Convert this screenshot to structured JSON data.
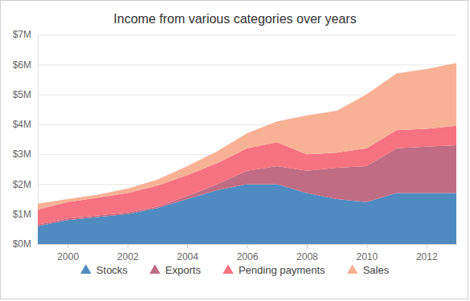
{
  "chart_data": {
    "type": "area",
    "title": "Income from various categories over years",
    "stacked": true,
    "grid": true,
    "legend": "bottom",
    "marker": "triangle",
    "x": [
      1999,
      2000,
      2001,
      2002,
      2003,
      2004,
      2005,
      2006,
      2007,
      2008,
      2009,
      2010,
      2011,
      2012,
      2013
    ],
    "xlim": [
      1999,
      2013
    ],
    "xticks": [
      2000,
      2002,
      2004,
      2006,
      2008,
      2010,
      2012
    ],
    "ylim": [
      0,
      7
    ],
    "yticks": [
      {
        "value": 0,
        "label": "$0M"
      },
      {
        "value": 1,
        "label": "$1M"
      },
      {
        "value": 2,
        "label": "$2M"
      },
      {
        "value": 3,
        "label": "$3M"
      },
      {
        "value": 4,
        "label": "$4M"
      },
      {
        "value": 5,
        "label": "$5M"
      },
      {
        "value": 6,
        "label": "$6M"
      },
      {
        "value": 7,
        "label": "$7M"
      }
    ],
    "series": [
      {
        "name": "Stocks",
        "color": "#4f8bc0",
        "values": [
          0.6,
          0.8,
          0.9,
          1.0,
          1.2,
          1.5,
          1.8,
          2.0,
          2.0,
          1.7,
          1.5,
          1.4,
          1.7,
          1.7,
          1.7
        ]
      },
      {
        "name": "Exports",
        "color": "#c06c84",
        "values": [
          0.05,
          0.05,
          0.05,
          0.05,
          0.05,
          0.1,
          0.2,
          0.45,
          0.6,
          0.75,
          1.05,
          1.2,
          1.5,
          1.55,
          1.6
        ]
      },
      {
        "name": "Pending payments",
        "color": "#f67280",
        "values": [
          0.5,
          0.55,
          0.6,
          0.65,
          0.7,
          0.7,
          0.7,
          0.75,
          0.8,
          0.55,
          0.5,
          0.6,
          0.6,
          0.6,
          0.65
        ]
      },
      {
        "name": "Sales",
        "color": "#f8b195",
        "values": [
          0.2,
          0.1,
          0.1,
          0.15,
          0.2,
          0.3,
          0.4,
          0.5,
          0.7,
          1.3,
          1.4,
          1.8,
          1.9,
          2.0,
          2.1
        ]
      }
    ]
  }
}
